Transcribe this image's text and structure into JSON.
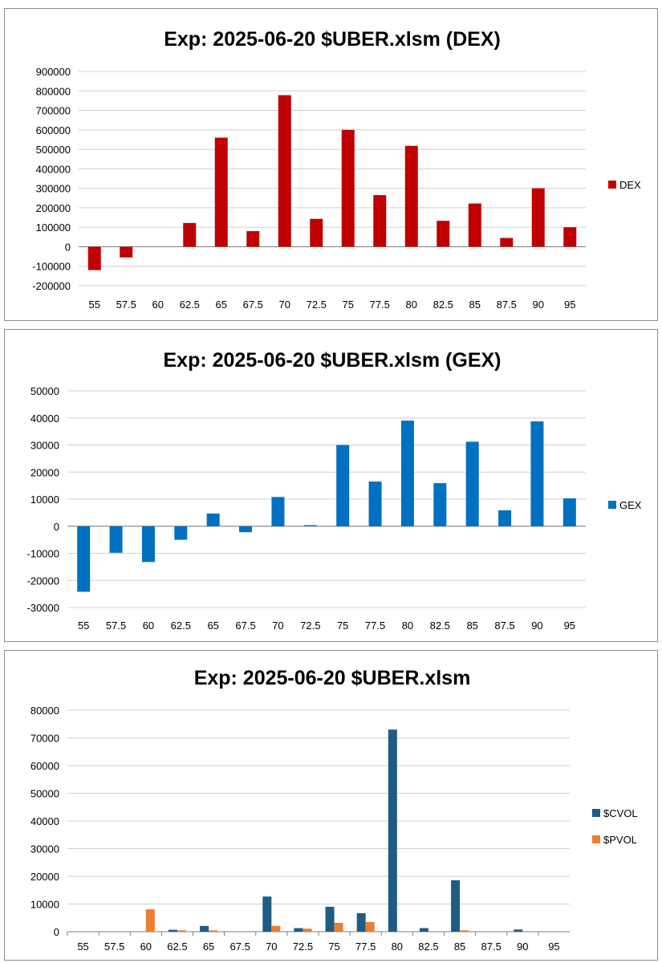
{
  "chart_data": [
    {
      "type": "bar",
      "title": "Exp: 2025-06-20 $UBER.xlsm (DEX)",
      "xlabel": "",
      "ylabel": "",
      "categories": [
        "55",
        "57.5",
        "60",
        "62.5",
        "65",
        "67.5",
        "70",
        "72.5",
        "75",
        "77.5",
        "80",
        "82.5",
        "85",
        "87.5",
        "90",
        "95"
      ],
      "ylim": [
        -200000,
        900000
      ],
      "yticks": [
        "-200000",
        "-100000",
        "0",
        "100000",
        "200000",
        "300000",
        "400000",
        "500000",
        "600000",
        "700000",
        "800000",
        "900000"
      ],
      "grid": true,
      "legend": "right",
      "series": [
        {
          "name": "DEX",
          "color": "#c00000",
          "values": [
            -120000,
            -55000,
            0,
            122000,
            560000,
            80000,
            778000,
            143000,
            600000,
            265000,
            518000,
            133000,
            222000,
            45000,
            300000,
            100000
          ]
        }
      ]
    },
    {
      "type": "bar",
      "title": "Exp: 2025-06-20 $UBER.xlsm (GEX)",
      "xlabel": "",
      "ylabel": "",
      "categories": [
        "55",
        "57.5",
        "60",
        "62.5",
        "65",
        "67.5",
        "70",
        "72.5",
        "75",
        "77.5",
        "80",
        "82.5",
        "85",
        "87.5",
        "90",
        "95"
      ],
      "ylim": [
        -30000,
        50000
      ],
      "yticks": [
        "-30000",
        "-20000",
        "-10000",
        "0",
        "10000",
        "20000",
        "30000",
        "40000",
        "50000"
      ],
      "grid": true,
      "legend": "right",
      "series": [
        {
          "name": "GEX",
          "color": "#0070c0",
          "values": [
            -24200,
            -9800,
            -13200,
            -5000,
            4700,
            -2200,
            10800,
            400,
            30000,
            16500,
            39000,
            15900,
            31200,
            5900,
            38700,
            10300
          ]
        }
      ]
    },
    {
      "type": "bar",
      "title": "Exp: 2025-06-20 $UBER.xlsm",
      "xlabel": "",
      "ylabel": "",
      "categories": [
        "55",
        "57.5",
        "60",
        "62.5",
        "65",
        "67.5",
        "70",
        "72.5",
        "75",
        "77.5",
        "80",
        "82.5",
        "85",
        "87.5",
        "90",
        "95"
      ],
      "ylim": [
        0,
        80000
      ],
      "yticks": [
        "0",
        "10000",
        "20000",
        "30000",
        "40000",
        "50000",
        "60000",
        "70000",
        "80000"
      ],
      "grid": true,
      "legend": "right",
      "series": [
        {
          "name": "$CVOL",
          "color": "#1f5c84",
          "values": [
            0,
            0,
            0,
            700,
            2100,
            0,
            12700,
            1300,
            9000,
            6700,
            73000,
            1300,
            18600,
            0,
            800,
            0
          ]
        },
        {
          "name": "$PVOL",
          "color": "#ed7d31",
          "values": [
            0,
            0,
            8100,
            500,
            500,
            0,
            2100,
            1100,
            3200,
            3500,
            0,
            0,
            500,
            0,
            0,
            0
          ]
        }
      ]
    }
  ]
}
